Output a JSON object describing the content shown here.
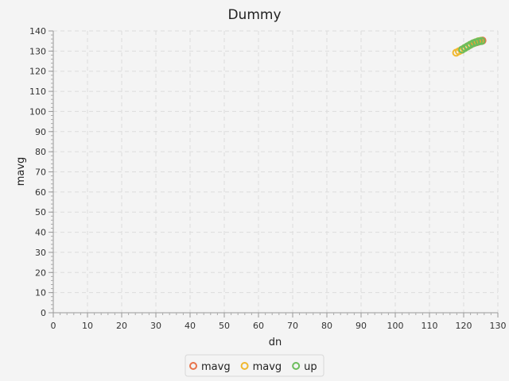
{
  "chart_data": {
    "type": "scatter",
    "title": "Dummy",
    "xlabel": "dn",
    "ylabel": "mavg",
    "xlim": [
      0,
      130
    ],
    "ylim": [
      0,
      140
    ],
    "xticks": [
      0,
      10,
      20,
      30,
      40,
      50,
      60,
      70,
      80,
      90,
      100,
      110,
      120,
      130
    ],
    "yticks": [
      0,
      10,
      20,
      30,
      40,
      50,
      60,
      70,
      80,
      90,
      100,
      110,
      120,
      130,
      140
    ],
    "grid": true,
    "legend_position": "bottom",
    "series": [
      {
        "name": "mavg",
        "color": "#e8734a",
        "points": [
          {
            "x": 125.5,
            "y": 135.2
          },
          {
            "x": 124.8,
            "y": 134.9
          },
          {
            "x": 124.0,
            "y": 134.5
          },
          {
            "x": 123.2,
            "y": 134.1
          }
        ]
      },
      {
        "name": "mavg",
        "color": "#f0b830",
        "points": [
          {
            "x": 117.8,
            "y": 129.2
          },
          {
            "x": 118.6,
            "y": 129.9
          },
          {
            "x": 119.4,
            "y": 130.6
          },
          {
            "x": 120.2,
            "y": 131.4
          },
          {
            "x": 121.0,
            "y": 132.2
          },
          {
            "x": 121.8,
            "y": 133.0
          },
          {
            "x": 122.6,
            "y": 133.7
          },
          {
            "x": 123.4,
            "y": 134.3
          },
          {
            "x": 124.2,
            "y": 134.8
          },
          {
            "x": 125.0,
            "y": 135.1
          }
        ]
      },
      {
        "name": "up",
        "color": "#6cbd5c",
        "points": [
          {
            "x": 119.6,
            "y": 130.8
          },
          {
            "x": 120.4,
            "y": 131.6
          },
          {
            "x": 121.2,
            "y": 132.4
          },
          {
            "x": 122.0,
            "y": 133.2
          },
          {
            "x": 122.8,
            "y": 133.9
          },
          {
            "x": 123.6,
            "y": 134.4
          },
          {
            "x": 124.4,
            "y": 134.8
          },
          {
            "x": 125.2,
            "y": 135.0
          }
        ]
      }
    ]
  }
}
